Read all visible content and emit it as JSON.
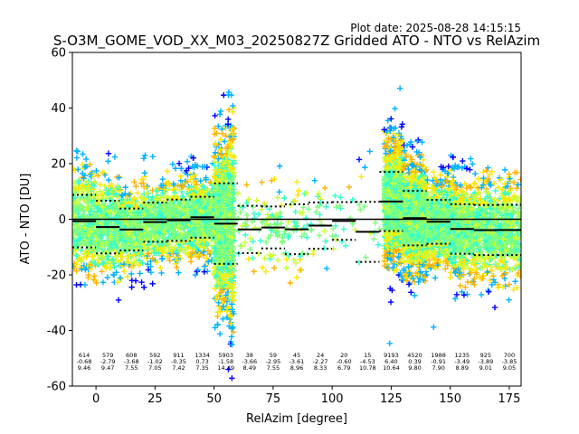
{
  "figure": {
    "plot_date_label": "Plot date: 2025-08-28 14:15:15"
  },
  "chart_data": {
    "type": "scatter",
    "title": "S-O3M_GOME_VOD_XX_M03_20250827Z Gridded ATO - NTO vs RelAzim",
    "xlabel": "RelAzim [degree]",
    "ylabel": "ATO - NTO [DU]",
    "xlim": [
      -10,
      180
    ],
    "ylim": [
      -60,
      60
    ],
    "xticks": [
      0,
      25,
      50,
      75,
      100,
      125,
      150,
      175
    ],
    "yticks": [
      -60,
      -40,
      -20,
      0,
      20,
      40,
      60
    ],
    "grid": false,
    "marker": "plus",
    "bin_edges": [
      -10,
      0,
      10,
      20,
      30,
      40,
      50,
      60,
      70,
      80,
      90,
      100,
      110,
      120,
      130,
      140,
      150,
      160,
      170,
      180
    ],
    "bins": [
      {
        "center": -5,
        "count": "614",
        "mean": -0.68,
        "std": 9.46
      },
      {
        "center": 5,
        "count": "579",
        "mean": -2.79,
        "std": 9.47
      },
      {
        "center": 15,
        "count": "608",
        "mean": -3.68,
        "std": 7.55
      },
      {
        "center": 25,
        "count": "592",
        "mean": -1.02,
        "std": 7.05
      },
      {
        "center": 35,
        "count": "911",
        "mean": -0.35,
        "std": 7.42
      },
      {
        "center": 45,
        "count": "1334",
        "mean": 0.73,
        "std": 7.35
      },
      {
        "center": 55,
        "count": "5903",
        "mean": -1.58,
        "std": 14.49
      },
      {
        "center": 65,
        "count": "38",
        "mean": -3.66,
        "std": 8.49
      },
      {
        "center": 75,
        "count": "59",
        "mean": -2.95,
        "std": 7.55
      },
      {
        "center": 85,
        "count": "45",
        "mean": -3.61,
        "std": 8.96
      },
      {
        "center": 95,
        "count": "24",
        "mean": -2.27,
        "std": 8.33
      },
      {
        "center": 105,
        "count": "20",
        "mean": -0.6,
        "std": 6.79
      },
      {
        "center": 115,
        "count": "15",
        "mean": -4.53,
        "std": 10.78
      },
      {
        "center": 125,
        "count": "9193",
        "mean": 6.4,
        "std": 10.64
      },
      {
        "center": 135,
        "count": "4520",
        "mean": 0.39,
        "std": 9.8
      },
      {
        "center": 145,
        "count": "1988",
        "mean": -0.91,
        "std": 7.9
      },
      {
        "center": 155,
        "count": "1235",
        "mean": -3.49,
        "std": 8.89
      },
      {
        "center": 165,
        "count": "925",
        "mean": -3.89,
        "std": 9.01
      },
      {
        "center": 175,
        "count": "700",
        "mean": -3.85,
        "std": 9.05
      }
    ],
    "bin_count_labels": [
      "614",
      "579",
      "608",
      "592",
      "911",
      "1334",
      "5903",
      "38",
      "59",
      "45",
      "24",
      "20",
      "15",
      "9193",
      "4520",
      "1988",
      "1235",
      "925",
      "700"
    ],
    "bin_mean_labels": [
      "-0.68",
      "-2.79",
      "-3.68",
      "-1.02",
      "-0.35",
      "0.73",
      "-1.58",
      "-3.66",
      "-2.95",
      "-3.61",
      "-2.27",
      "-0.60",
      "-4.53",
      "6.40",
      "0.39",
      "-0.91",
      "-3.49",
      "-3.89",
      "-3.85"
    ],
    "bin_std_labels": [
      "9.46",
      "9.47",
      "7.55",
      "7.05",
      "7.42",
      "7.35",
      "14.49",
      "8.49",
      "7.55",
      "8.96",
      "8.33",
      "6.79",
      "10.78",
      "10.64",
      "9.80",
      "7.90",
      "8.89",
      "9.01",
      "9.05"
    ],
    "colors": {
      "lime": "#7fff7f",
      "cyan": "#33ffcc",
      "yellow": "#ffe600",
      "yellow_green": "#ccff33",
      "orange": "#ffb300",
      "sky": "#00b3ff",
      "blue": "#0000ff",
      "mean_line": "#000000",
      "zero_line": "#000000"
    }
  }
}
